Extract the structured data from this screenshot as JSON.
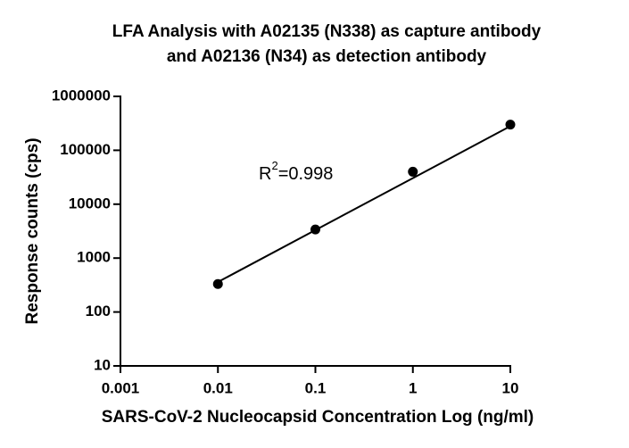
{
  "chart_data": {
    "type": "scatter",
    "title": [
      "LFA Analysis with A02135 (N338) as capture antibody",
      "and A02136 (N34) as detection antibody"
    ],
    "x_label": "SARS-CoV-2 Nucleocapsid Concentration Log (ng/ml)",
    "y_label": "Response counts (cps)",
    "xscale": "log",
    "yscale": "log",
    "xlim": [
      0.001,
      10
    ],
    "ylim": [
      10,
      1000000
    ],
    "xticks": [
      0.001,
      0.01,
      0.1,
      1,
      10
    ],
    "yticks": [
      10,
      100,
      1000,
      10000,
      100000,
      1000000
    ],
    "color": "#000000",
    "x": [
      0.01,
      0.1,
      1,
      10
    ],
    "values": [
      330,
      3400,
      40000,
      300000
    ],
    "fit": {
      "x": [
        0.01,
        10
      ],
      "values": [
        360,
        280000
      ]
    },
    "annotation": {
      "base": "R",
      "sup": "2",
      "rest": "=0.998"
    }
  }
}
